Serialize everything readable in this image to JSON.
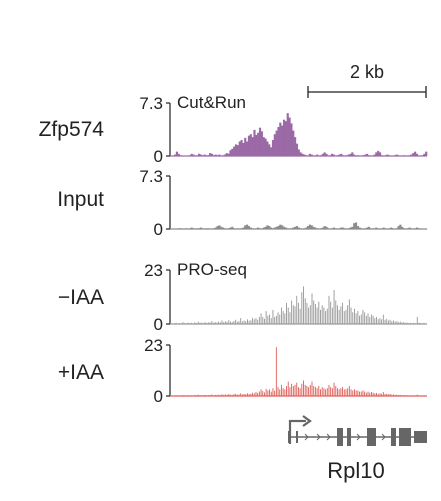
{
  "scale_bar": {
    "label": "2 kb"
  },
  "chart_data": [
    {
      "type": "area",
      "name": "Zfp574",
      "assay_label": "Cut&Run",
      "color": "#9b6aa6",
      "ylim": [
        0,
        7.3
      ],
      "yticks": [
        "0",
        "7.3"
      ],
      "values": [
        0.2,
        0.6,
        0.3,
        0.1,
        0.05,
        0.05,
        0.05,
        0.05,
        0.1,
        0.3,
        0.2,
        0.05,
        0.1,
        0.3,
        0.2,
        0.1,
        0.2,
        0.1,
        0.1,
        0.4,
        0.3,
        0.1,
        0.2,
        0.1,
        0.2,
        0.05,
        0.1,
        0.2,
        0.4,
        0.3,
        0.8,
        1.0,
        1.3,
        1.6,
        1.5,
        2.0,
        2.2,
        1.8,
        2.5,
        2.0,
        2.8,
        3.0,
        2.6,
        3.6,
        2.9,
        3.2,
        3.9,
        3.4,
        2.6,
        2.4,
        2.0,
        1.6,
        1.2,
        2.2,
        3.0,
        3.5,
        4.0,
        4.6,
        4.2,
        5.0,
        4.8,
        5.9,
        5.3,
        4.5,
        3.5,
        2.6,
        1.7,
        0.9,
        0.5,
        0.3,
        0.2,
        0.1,
        0.05,
        0.3,
        0.2,
        0.05,
        0.1,
        0.2,
        0.05,
        0.1,
        0.3,
        0.5,
        0.3,
        0.05,
        0.1,
        0.3,
        0.2,
        0.05,
        0.1,
        0.2,
        0.3,
        0.1,
        0.05,
        0.1,
        0.2,
        0.3,
        0.5,
        0.2,
        0.05,
        0.1,
        0.05,
        0.05,
        0.1,
        0.2,
        0.3,
        0.1,
        0.05,
        0.05,
        0.2,
        0.5,
        0.7,
        0.5,
        0.1,
        0.05,
        0.1,
        0.2,
        0.1,
        0.05,
        0.05,
        0.1,
        0.2,
        0.1,
        0.05,
        0.05,
        0.1,
        0.05,
        0.05,
        0.1,
        0.2,
        0.4,
        0.6,
        0.3,
        0.05,
        0.05,
        0.1,
        0.3,
        0.6
      ]
    },
    {
      "type": "area",
      "name": "Input",
      "assay_label": "",
      "color": "#8c8c8c",
      "ylim": [
        0,
        7.3
      ],
      "yticks": [
        "0",
        "7.3"
      ],
      "values": [
        0.05,
        0.05,
        0.1,
        0.1,
        0.05,
        0.05,
        0.1,
        0.05,
        0.1,
        0.2,
        0.1,
        0.05,
        0.1,
        0.1,
        0.2,
        0.1,
        0.05,
        0.1,
        0.1,
        0.05,
        0.05,
        0.1,
        0.2,
        0.4,
        0.5,
        0.3,
        0.2,
        0.1,
        0.05,
        0.1,
        0.2,
        0.3,
        0.1,
        0.05,
        0.1,
        0.05,
        0.1,
        0.2,
        0.5,
        0.6,
        0.4,
        0.2,
        0.1,
        0.05,
        0.1,
        0.2,
        0.1,
        0.05,
        0.2,
        0.3,
        0.5,
        0.4,
        0.2,
        0.1,
        0.2,
        0.3,
        0.4,
        0.6,
        0.5,
        0.3,
        0.2,
        0.1,
        0.05,
        0.1,
        0.2,
        0.3,
        0.4,
        0.2,
        0.1,
        0.05,
        0.1,
        0.2,
        0.4,
        0.6,
        0.5,
        0.3,
        0.2,
        0.1,
        0.05,
        0.1,
        0.2,
        0.4,
        0.3,
        0.1,
        0.05,
        0.1,
        0.2,
        0.1,
        0.05,
        0.1,
        0.2,
        0.2,
        0.1,
        0.05,
        0.1,
        0.2,
        0.3,
        0.8,
        0.9,
        0.4,
        0.2,
        0.1,
        0.05,
        0.1,
        0.2,
        0.3,
        0.1,
        0.05,
        0.1,
        0.2,
        0.1,
        0.05,
        0.1,
        0.2,
        0.1,
        0.05,
        0.1,
        0.2,
        0.1,
        0.05,
        0.1,
        0.4,
        0.6,
        0.3,
        0.1,
        0.05,
        0.1,
        0.2,
        0.1,
        0.05,
        0.1,
        0.2,
        0.1,
        0.05,
        0.05,
        0.05,
        0.05
      ]
    },
    {
      "type": "bar",
      "name": "−IAA",
      "assay_label": "PRO-seq",
      "color": "#9a9a9a",
      "ylim": [
        0,
        23
      ],
      "yticks": [
        "0",
        "23"
      ],
      "values": [
        0.3,
        0.5,
        0.2,
        0.4,
        0.3,
        0.8,
        0.4,
        0.3,
        0.6,
        0.4,
        0.5,
        0.3,
        0.7,
        0.4,
        1.0,
        0.5,
        0.6,
        0.4,
        0.8,
        0.5,
        0.7,
        0.6,
        1.2,
        0.5,
        0.8,
        0.6,
        1.0,
        0.7,
        1.5,
        0.8,
        1.2,
        0.9,
        1.6,
        1.0,
        0.8,
        1.3,
        1.8,
        1.0,
        1.2,
        2.5,
        1.1,
        1.5,
        1.2,
        2.0,
        1.4,
        1.6,
        2.6,
        2.0,
        2.5,
        1.8,
        3.0,
        4.5,
        3.0,
        2.2,
        5.5,
        3.5,
        4.0,
        2.5,
        6.0,
        3.0,
        3.5,
        5.0,
        4.0,
        7.0,
        5.5,
        4.5,
        9.0,
        7.0,
        5.0,
        10.0,
        8.0,
        7.5,
        12.0,
        9.0,
        6.5,
        13.5,
        16.0,
        11.0,
        9.0,
        7.0,
        8.0,
        13.0,
        10.0,
        8.5,
        7.0,
        9.5,
        6.0,
        8.0,
        7.0,
        5.5,
        6.5,
        12.0,
        9.5,
        7.0,
        14.5,
        10.0,
        8.0,
        6.0,
        7.5,
        9.0,
        5.5,
        6.0,
        8.0,
        10.5,
        7.0,
        5.0,
        6.5,
        4.5,
        5.5,
        3.5,
        4.0,
        6.0,
        5.0,
        3.5,
        4.5,
        3.0,
        4.0,
        3.5,
        2.5,
        3.0,
        2.0,
        2.5,
        2.0,
        4.0,
        1.8,
        2.2,
        1.5,
        1.8,
        1.2,
        1.5,
        1.0,
        1.2,
        0.8,
        1.0,
        0.7,
        0.8,
        0.5,
        0.6,
        0.4,
        0.5,
        0.3,
        0.5,
        0.3,
        3.0,
        0.5,
        0.4,
        0.3,
        0.5,
        0.2
      ]
    },
    {
      "type": "bar",
      "name": "+IAA",
      "assay_label": "",
      "color": "#e0605a",
      "ylim": [
        0,
        23
      ],
      "yticks": [
        "0",
        "23"
      ],
      "values": [
        0.2,
        0.3,
        0.2,
        0.3,
        0.2,
        0.4,
        0.3,
        0.2,
        0.4,
        0.3,
        0.3,
        0.2,
        0.5,
        0.3,
        0.6,
        0.3,
        0.4,
        0.3,
        0.5,
        0.3,
        0.4,
        0.4,
        0.7,
        0.3,
        0.5,
        0.4,
        0.6,
        0.4,
        0.8,
        0.5,
        0.7,
        0.5,
        0.9,
        0.6,
        0.5,
        0.8,
        1.0,
        0.6,
        0.7,
        1.2,
        0.7,
        0.9,
        0.8,
        1.2,
        0.9,
        1.0,
        1.5,
        1.2,
        1.8,
        1.4,
        2.0,
        3.0,
        2.2,
        1.6,
        3.2,
        2.5,
        3.0,
        2.0,
        3.5,
        2.4,
        22.0,
        4.0,
        3.0,
        5.0,
        3.5,
        3.0,
        4.5,
        6.5,
        4.0,
        5.5,
        4.5,
        5.0,
        6.0,
        4.0,
        3.5,
        5.5,
        7.0,
        5.0,
        4.5,
        4.0,
        5.0,
        6.5,
        4.5,
        4.0,
        3.5,
        4.5,
        3.0,
        4.0,
        3.5,
        3.0,
        3.5,
        5.0,
        4.0,
        3.5,
        6.0,
        4.5,
        3.5,
        3.0,
        3.5,
        4.0,
        3.0,
        3.0,
        3.5,
        4.5,
        3.0,
        2.5,
        3.0,
        2.5,
        2.5,
        2.0,
        2.0,
        2.5,
        2.0,
        1.5,
        2.0,
        1.5,
        1.8,
        1.5,
        1.2,
        1.4,
        1.0,
        1.2,
        1.0,
        1.8,
        0.9,
        1.0,
        0.8,
        0.9,
        0.6,
        0.7,
        0.5,
        0.6,
        0.4,
        0.5,
        0.3,
        0.4,
        0.3,
        0.3,
        0.2,
        0.3,
        0.2,
        0.3,
        0.2,
        0.6,
        0.3,
        0.2,
        0.2,
        0.3,
        0.1
      ]
    }
  ],
  "gene": {
    "name": "Rpl10",
    "color": "#666666"
  }
}
